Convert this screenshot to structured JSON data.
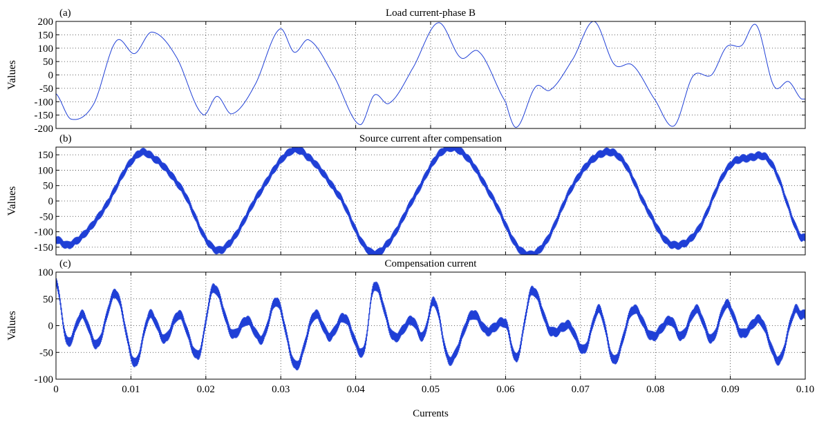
{
  "chart_data": [
    {
      "type": "line",
      "panel_label": "(a)",
      "title": "Load current-phase B",
      "ylabel": "Values",
      "xlabel": "",
      "xlim": [
        0,
        0.1
      ],
      "ylim": [
        -200,
        200
      ],
      "xticks": [
        0,
        0.01,
        0.02,
        0.03,
        0.04,
        0.05,
        0.06,
        0.07,
        0.08,
        0.09,
        0.1
      ],
      "yticks": [
        -200,
        -150,
        -100,
        -50,
        0,
        50,
        100,
        150,
        200
      ],
      "grid": true,
      "color": "#1f3fd6",
      "noise": 0,
      "series": [
        {
          "x": [
            0,
            0.002,
            0.005,
            0.008,
            0.0105,
            0.0128,
            0.016,
            0.0195,
            0.0215,
            0.0235,
            0.0265,
            0.0298,
            0.0318,
            0.0338,
            0.037,
            0.0405,
            0.0425,
            0.0445,
            0.0475,
            0.051,
            0.054,
            0.0565,
            0.06,
            0.0615,
            0.064,
            0.066,
            0.069,
            0.0718,
            0.0745,
            0.077,
            0.08,
            0.0825,
            0.085,
            0.0875,
            0.0895,
            0.0915,
            0.0935,
            0.0958,
            0.0978,
            0.0995
          ],
          "y": [
            -70,
            -165,
            -110,
            125,
            80,
            160,
            70,
            -145,
            -80,
            -145,
            -40,
            170,
            85,
            130,
            0,
            -185,
            -75,
            -105,
            20,
            195,
            65,
            85,
            -100,
            -195,
            -45,
            -55,
            60,
            200,
            40,
            35,
            -95,
            -190,
            -5,
            0,
            105,
            110,
            185,
            -40,
            -25,
            -90
          ]
        }
      ]
    },
    {
      "type": "line",
      "panel_label": "(b)",
      "title": "Source current after compensation",
      "ylabel": "Values",
      "xlabel": "",
      "xlim": [
        0,
        0.1
      ],
      "ylim": [
        -175,
        175
      ],
      "xticks": [
        0,
        0.01,
        0.02,
        0.03,
        0.04,
        0.05,
        0.06,
        0.07,
        0.08,
        0.09,
        0.1
      ],
      "yticks": [
        -150,
        -100,
        -50,
        0,
        50,
        100,
        150
      ],
      "grid": true,
      "color": "#1f3fd6",
      "noise": 14,
      "series": [
        {
          "x": [
            0,
            0.002,
            0.006,
            0.0105,
            0.013,
            0.017,
            0.0205,
            0.023,
            0.027,
            0.031,
            0.0335,
            0.038,
            0.0415,
            0.044,
            0.048,
            0.0515,
            0.0545,
            0.0585,
            0.062,
            0.065,
            0.069,
            0.0725,
            0.0755,
            0.079,
            0.082,
            0.0855,
            0.0895,
            0.0925,
            0.0955,
            0.0995
          ],
          "y": [
            -125,
            -140,
            -40,
            140,
            140,
            30,
            -140,
            -140,
            20,
            155,
            145,
            10,
            -155,
            -145,
            20,
            160,
            150,
            0,
            -160,
            -145,
            50,
            150,
            135,
            -30,
            -140,
            -100,
            100,
            140,
            120,
            -120
          ]
        }
      ]
    },
    {
      "type": "line",
      "panel_label": "(c)",
      "title": "Compensation current",
      "ylabel": "Values",
      "xlabel": "Currents",
      "xlim": [
        0,
        0.1
      ],
      "ylim": [
        -100,
        100
      ],
      "xticks": [
        0,
        0.01,
        0.02,
        0.03,
        0.04,
        0.05,
        0.06,
        0.07,
        0.08,
        0.09,
        0.1
      ],
      "yticks": [
        -100,
        -50,
        0,
        50,
        100
      ],
      "grid": true,
      "color": "#1f3fd6",
      "noise": 10,
      "series": [
        {
          "x": [
            0,
            0.0015,
            0.0035,
            0.0055,
            0.008,
            0.0105,
            0.0125,
            0.0145,
            0.0165,
            0.019,
            0.021,
            0.0235,
            0.0255,
            0.0275,
            0.0295,
            0.032,
            0.0345,
            0.0365,
            0.0385,
            0.041,
            0.0425,
            0.045,
            0.0475,
            0.049,
            0.0505,
            0.0525,
            0.0555,
            0.0575,
            0.06,
            0.0615,
            0.0635,
            0.066,
            0.0685,
            0.0705,
            0.0725,
            0.0745,
            0.077,
            0.0795,
            0.082,
            0.0835,
            0.0855,
            0.0875,
            0.0895,
            0.0915,
            0.094,
            0.0965,
            0.0985,
            0.0995
          ],
          "y": [
            85,
            -30,
            20,
            -35,
            60,
            -70,
            20,
            -25,
            20,
            -55,
            70,
            -15,
            10,
            -25,
            45,
            -75,
            20,
            -20,
            15,
            -50,
            75,
            -20,
            10,
            -20,
            45,
            -65,
            20,
            -10,
            5,
            -60,
            65,
            -10,
            0,
            -45,
            30,
            -65,
            30,
            -20,
            10,
            -20,
            30,
            -25,
            40,
            -15,
            10,
            -65,
            25,
            20
          ]
        }
      ]
    }
  ]
}
